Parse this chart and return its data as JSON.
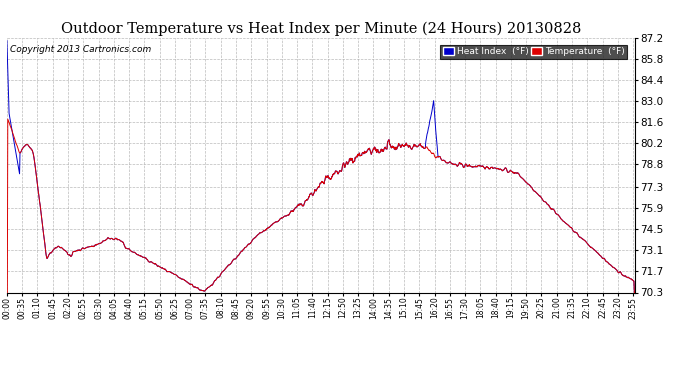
{
  "title": "Outdoor Temperature vs Heat Index per Minute (24 Hours) 20130828",
  "copyright": "Copyright 2013 Cartronics.com",
  "ylim": [
    70.3,
    87.2
  ],
  "yticks": [
    70.3,
    71.7,
    73.1,
    74.5,
    75.9,
    77.3,
    78.8,
    80.2,
    81.6,
    83.0,
    84.4,
    85.8,
    87.2
  ],
  "bg_color": "#ffffff",
  "grid_color": "#aaaaaa",
  "temp_color": "#dd0000",
  "heat_color": "#0000cc",
  "legend_heat_bg": "#0000cc",
  "legend_temp_bg": "#dd0000",
  "title_fontsize": 11,
  "copyright_fontsize": 7,
  "xtick_minutes": [
    0,
    35,
    70,
    105,
    140,
    175,
    210,
    245,
    280,
    315,
    350,
    385,
    420,
    455,
    490,
    525,
    560,
    595,
    630,
    665,
    700,
    735,
    770,
    805,
    840,
    875,
    910,
    945,
    980,
    1015,
    1050,
    1085,
    1120,
    1155,
    1190,
    1225,
    1260,
    1295,
    1330,
    1365,
    1400,
    1435
  ],
  "xtick_labels": [
    "00:00",
    "00:35",
    "01:10",
    "01:45",
    "02:20",
    "02:55",
    "03:30",
    "04:05",
    "04:40",
    "05:15",
    "05:50",
    "06:25",
    "07:00",
    "07:35",
    "08:10",
    "08:45",
    "09:20",
    "09:55",
    "10:30",
    "11:05",
    "11:40",
    "12:15",
    "12:50",
    "13:25",
    "14:00",
    "14:35",
    "15:10",
    "15:45",
    "16:20",
    "16:55",
    "17:30",
    "18:05",
    "18:40",
    "19:15",
    "19:50",
    "20:25",
    "21:00",
    "21:35",
    "22:10",
    "22:45",
    "23:20",
    "23:55"
  ]
}
